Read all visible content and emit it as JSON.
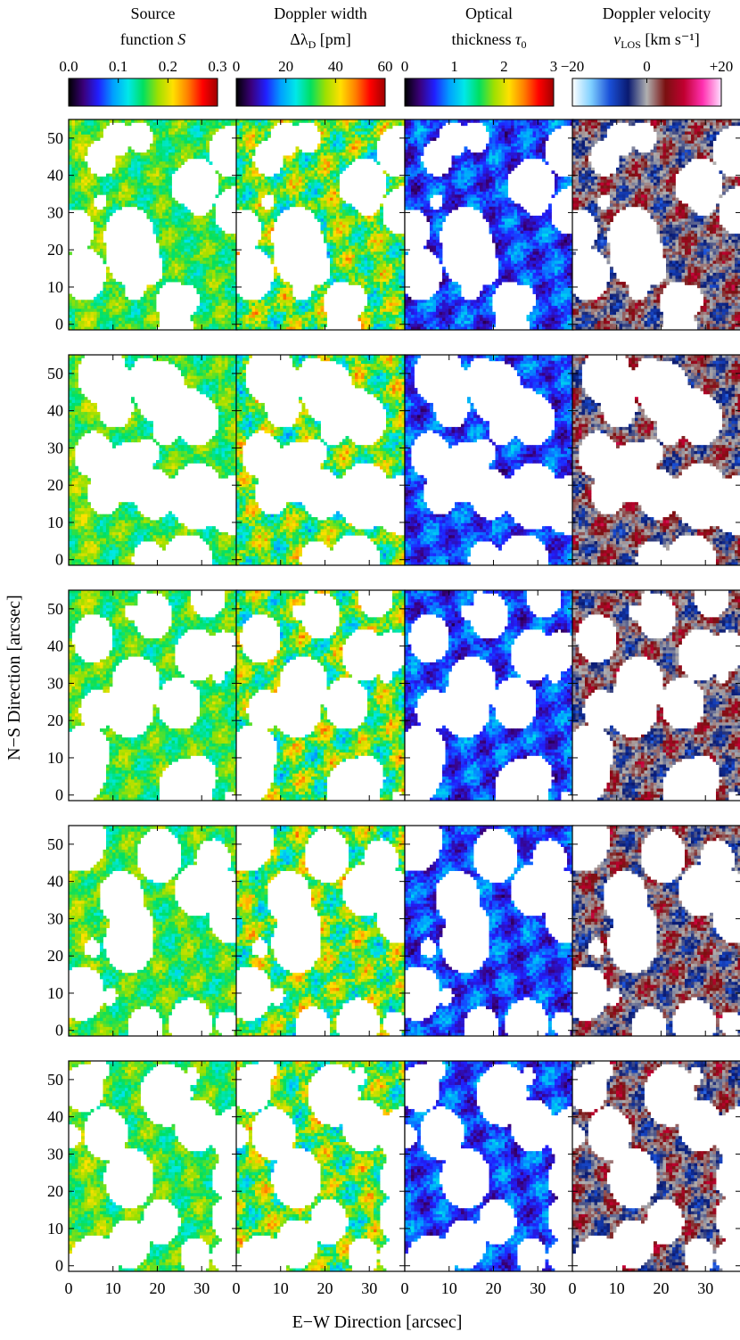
{
  "chart_data": {
    "type": "heatmap",
    "xlabel": "E−W Direction",
    "xlabel_unit": "[arcsec]",
    "ylabel": "N−S Direction",
    "ylabel_unit": "[arcsec]",
    "x_ticks": [
      0,
      10,
      20,
      30
    ],
    "y_ticks": [
      0,
      10,
      20,
      30,
      40,
      50
    ],
    "xlim": [
      0,
      38
    ],
    "ylim": [
      -1.5,
      55
    ],
    "rows": 5,
    "columns": [
      {
        "id": "source-function",
        "title_line1": "Source",
        "title_line2": "function",
        "symbol": "S",
        "colormap": "rainbow",
        "colorbar_range": [
          0.0,
          0.3
        ],
        "colorbar_ticks": [
          "0.0",
          "0.1",
          "0.2",
          "0.3"
        ],
        "mask": "#ffffff"
      },
      {
        "id": "doppler-width",
        "title_line1": "Doppler width",
        "title_line2": "Δλ",
        "subscript": "D",
        "unit": "[pm]",
        "colormap": "rainbow",
        "colorbar_range": [
          0,
          60
        ],
        "colorbar_ticks": [
          "0",
          "20",
          "40",
          "60"
        ],
        "mask": "#ffffff"
      },
      {
        "id": "optical-thickness",
        "title_line1": "Optical",
        "title_line2": "thickness",
        "symbol": "τ",
        "subscript": "0",
        "colormap": "rainbow",
        "colorbar_range": [
          0,
          3
        ],
        "colorbar_ticks": [
          "0",
          "1",
          "2",
          "3"
        ],
        "mask": "#ffffff"
      },
      {
        "id": "doppler-velocity",
        "title_line1": "Doppler velocity",
        "title_line2": "v",
        "subscript": "LOS",
        "unit": "[km s⁻¹]",
        "colormap": "diverging",
        "colorbar_range": [
          -20,
          20
        ],
        "colorbar_ticks": [
          "−20",
          "0",
          "+20"
        ],
        "mask": "#ffffff"
      }
    ],
    "colormaps": {
      "rainbow": [
        "#000000",
        "#3a007a",
        "#2020ff",
        "#00a0ff",
        "#00e8e8",
        "#00e060",
        "#9ee000",
        "#ffe000",
        "#ff8000",
        "#ff0000",
        "#a00000"
      ],
      "diverging": [
        "#ffffff",
        "#7fd0ff",
        "#1a50d8",
        "#0a1a70",
        "#b0b0b0",
        "#7a1010",
        "#c00030",
        "#ff30b0",
        "#ffe0ff"
      ]
    }
  }
}
